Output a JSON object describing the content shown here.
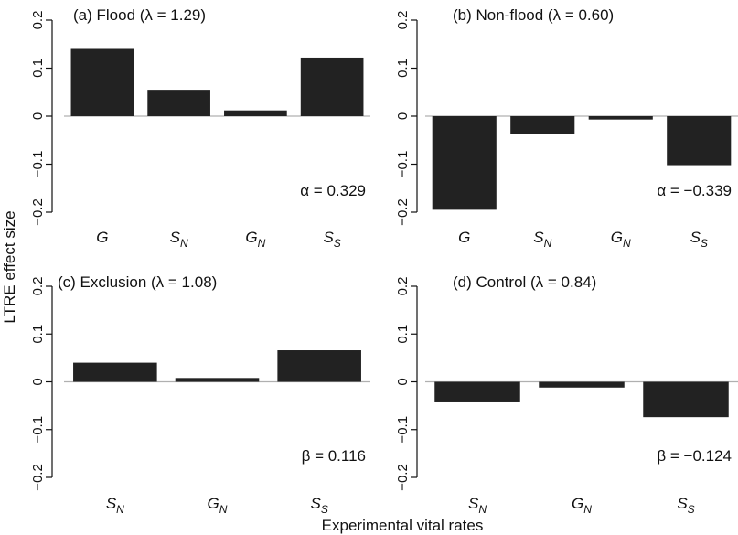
{
  "figure": {
    "ylabel": "LTRE effect size",
    "xlabel": "Experimental vital rates"
  },
  "colors": {
    "bar": "#222222",
    "zero_line": "#b0b0b0",
    "axis": "#111111"
  },
  "chart_data": [
    {
      "type": "bar",
      "title": "(a) Flood (λ = 1.29)",
      "annotation": "α = 0.329",
      "categories": [
        {
          "main": "G",
          "sub": ""
        },
        {
          "main": "S",
          "sub": "N"
        },
        {
          "main": "G",
          "sub": "N"
        },
        {
          "main": "S",
          "sub": "S"
        }
      ],
      "values": [
        0.14,
        0.055,
        0.012,
        0.122
      ],
      "ylim": [
        -0.2,
        0.2
      ],
      "yticks": [
        "−0.2",
        "−0.1",
        "0",
        "0.1",
        "0.2"
      ],
      "ytick_values": [
        -0.2,
        -0.1,
        0,
        0.1,
        0.2
      ]
    },
    {
      "type": "bar",
      "title": "(b) Non-flood (λ = 0.60)",
      "annotation": "α = −0.339",
      "categories": [
        {
          "main": "G",
          "sub": ""
        },
        {
          "main": "S",
          "sub": "N"
        },
        {
          "main": "G",
          "sub": "N"
        },
        {
          "main": "S",
          "sub": "S"
        }
      ],
      "values": [
        -0.195,
        -0.038,
        -0.007,
        -0.102
      ],
      "ylim": [
        -0.2,
        0.2
      ],
      "yticks": [
        "−0.2",
        "−0.1",
        "0",
        "0.1",
        "0.2"
      ],
      "ytick_values": [
        -0.2,
        -0.1,
        0,
        0.1,
        0.2
      ]
    },
    {
      "type": "bar",
      "title": "(c) Exclusion (λ = 1.08)",
      "annotation": "β = 0.116",
      "categories": [
        {
          "main": "S",
          "sub": "N"
        },
        {
          "main": "G",
          "sub": "N"
        },
        {
          "main": "S",
          "sub": "S"
        }
      ],
      "values": [
        0.04,
        0.008,
        0.066
      ],
      "ylim": [
        -0.2,
        0.2
      ],
      "yticks": [
        "−0.2",
        "−0.1",
        "0",
        "0.1",
        "0.2"
      ],
      "ytick_values": [
        -0.2,
        -0.1,
        0,
        0.1,
        0.2
      ]
    },
    {
      "type": "bar",
      "title": "(d) Control (λ = 0.84)",
      "annotation": "β = −0.124",
      "categories": [
        {
          "main": "S",
          "sub": "N"
        },
        {
          "main": "G",
          "sub": "N"
        },
        {
          "main": "S",
          "sub": "S"
        }
      ],
      "values": [
        -0.043,
        -0.012,
        -0.074
      ],
      "ylim": [
        -0.2,
        0.2
      ],
      "yticks": [
        "−0.2",
        "−0.1",
        "0",
        "0.1",
        "0.2"
      ],
      "ytick_values": [
        -0.2,
        -0.1,
        0,
        0.1,
        0.2
      ]
    }
  ]
}
